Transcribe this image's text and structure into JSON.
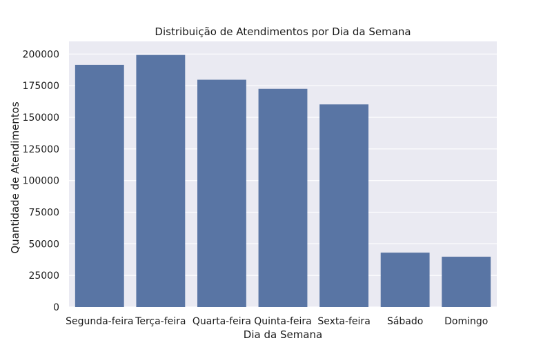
{
  "chart_data": {
    "type": "bar",
    "title": "Distribuição de Atendimentos por Dia da Semana",
    "xlabel": "Dia da Semana",
    "ylabel": "Quantidade de Atendimentos",
    "categories": [
      "Segunda-feira",
      "Terça-feira",
      "Quarta-feira",
      "Quinta-feira",
      "Sexta-feira",
      "Sábado",
      "Domingo"
    ],
    "values": [
      191500,
      199300,
      179700,
      172500,
      160200,
      43000,
      39800
    ],
    "ylim": [
      0,
      210000
    ],
    "yticks": [
      0,
      25000,
      50000,
      75000,
      100000,
      125000,
      150000,
      175000,
      200000
    ],
    "grid": true,
    "colors": {
      "bar": "#5975a4",
      "plot_background": "#eaeaf2",
      "grid": "#ffffff"
    }
  }
}
